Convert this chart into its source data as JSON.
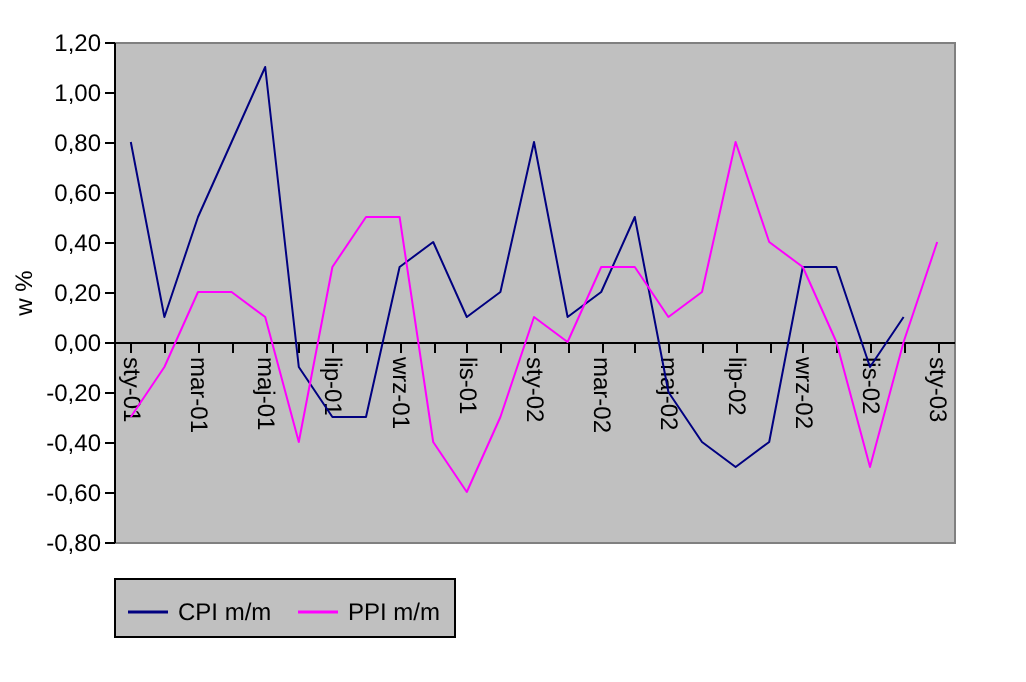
{
  "chart_data": {
    "type": "line",
    "ylabel": "w %",
    "categories": [
      "sty-01",
      null,
      "mar-01",
      null,
      "maj-01",
      null,
      "lip-01",
      null,
      "wrz-01",
      null,
      "lis-01",
      null,
      "sty-02",
      null,
      "mar-02",
      null,
      "maj-02",
      null,
      "lip-02",
      null,
      "wrz-02",
      null,
      "lis-02",
      null,
      "sty-03"
    ],
    "series": [
      {
        "name": "CPI m/m",
        "color": "#000080",
        "values": [
          0.8,
          0.1,
          0.5,
          0.8,
          1.1,
          -0.1,
          -0.3,
          -0.3,
          0.3,
          0.4,
          0.1,
          0.2,
          0.8,
          0.1,
          0.2,
          0.5,
          -0.2,
          -0.4,
          -0.5,
          -0.4,
          0.3,
          0.3,
          -0.1,
          0.1,
          null
        ]
      },
      {
        "name": "PPI m/m",
        "color": "#ff00ff",
        "values": [
          -0.3,
          -0.1,
          0.2,
          0.2,
          0.1,
          -0.4,
          0.3,
          0.5,
          0.5,
          -0.4,
          -0.6,
          -0.3,
          0.1,
          0.0,
          0.3,
          0.3,
          0.1,
          0.2,
          0.8,
          0.4,
          0.3,
          0.0,
          -0.5,
          0.0,
          0.4
        ]
      }
    ],
    "ylim": [
      -0.8,
      1.2
    ],
    "yticks": [
      {
        "value": -0.8,
        "label": "-0,80"
      },
      {
        "value": -0.6,
        "label": "-0,60"
      },
      {
        "value": -0.4,
        "label": "-0,40"
      },
      {
        "value": -0.2,
        "label": "-0,20"
      },
      {
        "value": 0,
        "label": "0,00"
      },
      {
        "value": 0.2,
        "label": "0,20"
      },
      {
        "value": 0.4,
        "label": "0,40"
      },
      {
        "value": 0.6,
        "label": "0,60"
      },
      {
        "value": 0.8,
        "label": "0,80"
      },
      {
        "value": 1.0,
        "label": "1,00"
      },
      {
        "value": 1.2,
        "label": "1,20"
      }
    ],
    "grid": false,
    "legend": "bottom",
    "marker": "none",
    "line_style": "solid"
  }
}
